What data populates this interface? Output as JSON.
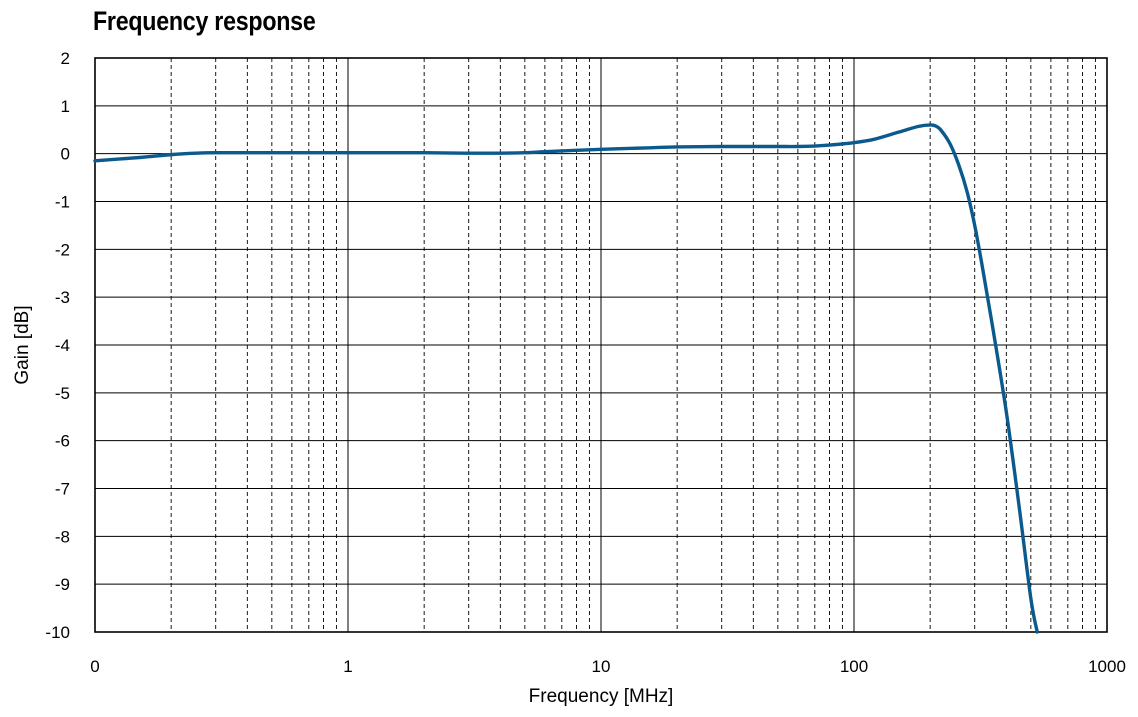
{
  "title": "Frequency response",
  "chart_data": {
    "type": "line",
    "title": "Frequency response",
    "xlabel": "Frequency [MHz]",
    "ylabel": "Gain [dB]",
    "x_scale": "log",
    "xlim": [
      0.1,
      1000
    ],
    "ylim": [
      -10,
      2
    ],
    "x_tick_labels": [
      "0",
      "1",
      "10",
      "100",
      "1000"
    ],
    "y_tick_labels": [
      "2",
      "1",
      "0",
      "-1",
      "-2",
      "-3",
      "-4",
      "-5",
      "-6",
      "-7",
      "-8",
      "-9",
      "-10"
    ],
    "grid": true,
    "minor_grid": "dashed",
    "line_color": "#0b5a8e",
    "series": [
      {
        "x": [
          0.1,
          0.15,
          0.2,
          0.25,
          0.3,
          0.5,
          1,
          2,
          3,
          4,
          5,
          6,
          8,
          10,
          15,
          20,
          30,
          40,
          50,
          60,
          70,
          80,
          100,
          120,
          150,
          180,
          200,
          210,
          220,
          240,
          260,
          280,
          300,
          320,
          350,
          400,
          450,
          500,
          530
        ],
        "y": [
          -0.15,
          -0.08,
          -0.02,
          0.01,
          0.02,
          0.02,
          0.02,
          0.02,
          0.01,
          0.01,
          0.02,
          0.04,
          0.07,
          0.09,
          0.12,
          0.14,
          0.15,
          0.15,
          0.15,
          0.15,
          0.16,
          0.18,
          0.23,
          0.3,
          0.45,
          0.57,
          0.6,
          0.58,
          0.5,
          0.2,
          -0.25,
          -0.8,
          -1.5,
          -2.3,
          -3.5,
          -5.4,
          -7.4,
          -9.3,
          -10
        ]
      }
    ]
  }
}
